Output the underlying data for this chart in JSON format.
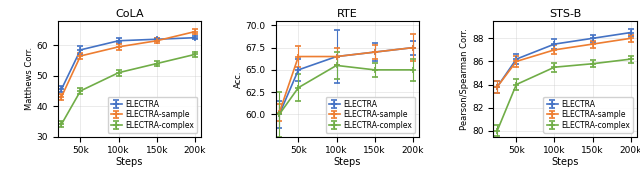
{
  "steps": [
    25000,
    50000,
    100000,
    150000,
    200000
  ],
  "cola": {
    "title": "CoLA",
    "ylabel": "Matthews Corr.",
    "ylim": [
      30,
      68
    ],
    "yticks": [
      30,
      40,
      50,
      60
    ],
    "electra": {
      "y": [
        45.5,
        58.5,
        61.5,
        62.0,
        62.5
      ],
      "yerr": [
        1.0,
        1.2,
        0.8,
        0.5,
        0.5
      ]
    },
    "electra_sample": {
      "y": [
        43.0,
        56.5,
        59.5,
        61.5,
        64.5
      ],
      "yerr": [
        1.0,
        1.0,
        1.0,
        0.8,
        0.8
      ]
    },
    "electra_complex": {
      "y": [
        34.0,
        45.0,
        51.0,
        54.0,
        57.0
      ],
      "yerr": [
        1.0,
        1.0,
        1.0,
        0.8,
        0.8
      ]
    }
  },
  "rte": {
    "title": "RTE",
    "ylabel": "Acc.",
    "ylim": [
      57.5,
      70.5
    ],
    "yticks": [
      60.0,
      62.5,
      65.0,
      67.5,
      70.0
    ],
    "electra": {
      "y": [
        60.0,
        65.0,
        66.5,
        67.0,
        67.5
      ],
      "yerr": [
        1.5,
        1.2,
        3.0,
        1.0,
        0.8
      ]
    },
    "electra_sample": {
      "y": [
        60.2,
        66.5,
        66.5,
        67.0,
        67.5
      ],
      "yerr": [
        1.0,
        1.2,
        1.0,
        0.8,
        1.5
      ]
    },
    "electra_complex": {
      "y": [
        60.0,
        63.0,
        65.5,
        65.0,
        65.0
      ],
      "yerr": [
        2.5,
        1.5,
        1.5,
        0.8,
        1.2
      ]
    }
  },
  "stsb": {
    "title": "STS-B",
    "ylabel": "Pearson/Spearman Corr.",
    "ylim": [
      79.5,
      89.5
    ],
    "yticks": [
      80,
      82,
      84,
      86,
      88
    ],
    "electra": {
      "y": [
        83.8,
        86.2,
        87.5,
        88.0,
        88.5
      ],
      "yerr": [
        0.5,
        0.4,
        0.4,
        0.3,
        0.3
      ]
    },
    "electra_sample": {
      "y": [
        83.8,
        86.0,
        87.0,
        87.5,
        88.0
      ],
      "yerr": [
        0.5,
        0.5,
        0.4,
        0.3,
        0.3
      ]
    },
    "electra_complex": {
      "y": [
        80.0,
        84.0,
        85.5,
        85.8,
        86.2
      ],
      "yerr": [
        0.5,
        0.5,
        0.4,
        0.3,
        0.3
      ]
    }
  },
  "colors": {
    "electra": "#4472c4",
    "electra_sample": "#ed7d31",
    "electra_complex": "#70ad47"
  },
  "legend_labels": [
    "ELECTRA",
    "ELECTRA-sample",
    "ELECTRA-complex"
  ],
  "xlabel": "Steps",
  "xtick_labels": [
    "50k",
    "100k",
    "150k",
    "200k"
  ],
  "xtick_positions": [
    50000,
    100000,
    150000,
    200000
  ]
}
